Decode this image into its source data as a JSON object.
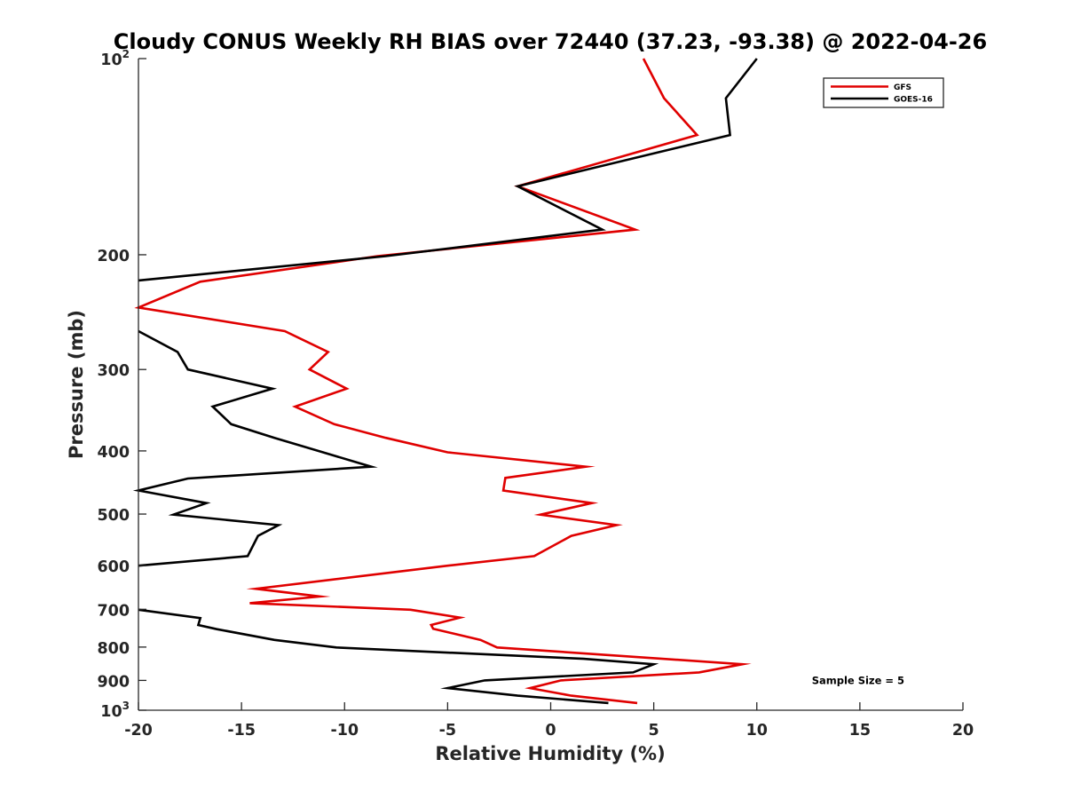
{
  "chart_data": {
    "type": "line",
    "title": "Cloudy CONUS Weekly RH BIAS over 72440 (37.23, -93.38) @ 2022-04-26",
    "xlabel": "Relative Humidity (%)",
    "ylabel": "Pressure (mb)",
    "xlim": [
      -20,
      20
    ],
    "ylim": [
      100,
      1000
    ],
    "y_scale": "log",
    "y_reversed": true,
    "grid": false,
    "legend_position": "top-right",
    "x_ticks": [
      "-20",
      "-15",
      "-10",
      "-5",
      "0",
      "5",
      "10",
      "15",
      "20"
    ],
    "x_tick_values": [
      -20,
      -15,
      -10,
      -5,
      0,
      5,
      10,
      15,
      20
    ],
    "y_ticks": [
      {
        "value": 100,
        "label": "10",
        "sup": "2"
      },
      {
        "value": 200,
        "label": "200",
        "sup": ""
      },
      {
        "value": 300,
        "label": "300",
        "sup": ""
      },
      {
        "value": 400,
        "label": "400",
        "sup": ""
      },
      {
        "value": 500,
        "label": "500",
        "sup": ""
      },
      {
        "value": 600,
        "label": "600",
        "sup": ""
      },
      {
        "value": 700,
        "label": "700",
        "sup": ""
      },
      {
        "value": 800,
        "label": "800",
        "sup": ""
      },
      {
        "value": 900,
        "label": "900",
        "sup": ""
      },
      {
        "value": 1000,
        "label": "10",
        "sup": "3"
      }
    ],
    "series": [
      {
        "name": "GFS",
        "color": "#e00000",
        "points": [
          {
            "x": 4.5,
            "y": 100
          },
          {
            "x": 5.5,
            "y": 115
          },
          {
            "x": 7.1,
            "y": 131
          },
          {
            "x": -1.6,
            "y": 157
          },
          {
            "x": 4.1,
            "y": 183
          },
          {
            "x": -8.4,
            "y": 201
          },
          {
            "x": -17.0,
            "y": 220
          },
          {
            "x": -20.0,
            "y": 241
          },
          {
            "x": -12.9,
            "y": 262
          },
          {
            "x": -10.8,
            "y": 282
          },
          {
            "x": -11.7,
            "y": 300
          },
          {
            "x": -9.9,
            "y": 321
          },
          {
            "x": -12.4,
            "y": 342
          },
          {
            "x": -10.5,
            "y": 364
          },
          {
            "x": -8.0,
            "y": 382
          },
          {
            "x": -5.0,
            "y": 402
          },
          {
            "x": 1.7,
            "y": 423
          },
          {
            "x": -2.2,
            "y": 440
          },
          {
            "x": -2.3,
            "y": 460
          },
          {
            "x": 2.0,
            "y": 481
          },
          {
            "x": -0.5,
            "y": 501
          },
          {
            "x": 3.2,
            "y": 520
          },
          {
            "x": 1.0,
            "y": 540
          },
          {
            "x": -0.8,
            "y": 580
          },
          {
            "x": -5.0,
            "y": 600
          },
          {
            "x": -14.3,
            "y": 651
          },
          {
            "x": -11.2,
            "y": 669
          },
          {
            "x": -14.6,
            "y": 685
          },
          {
            "x": -6.8,
            "y": 701
          },
          {
            "x": -4.4,
            "y": 721
          },
          {
            "x": -5.8,
            "y": 740
          },
          {
            "x": -5.7,
            "y": 750
          },
          {
            "x": -3.4,
            "y": 780
          },
          {
            "x": -2.6,
            "y": 801
          },
          {
            "x": 9.3,
            "y": 850
          },
          {
            "x": 7.2,
            "y": 875
          },
          {
            "x": 0.5,
            "y": 900
          },
          {
            "x": -1.0,
            "y": 925
          },
          {
            "x": 1.0,
            "y": 950
          },
          {
            "x": 4.2,
            "y": 975
          }
        ]
      },
      {
        "name": "GOES-16",
        "color": "#000000",
        "points": [
          {
            "x": 10.0,
            "y": 100
          },
          {
            "x": 8.5,
            "y": 115
          },
          {
            "x": 8.7,
            "y": 131
          },
          {
            "x": -1.6,
            "y": 157
          },
          {
            "x": 2.5,
            "y": 183
          },
          {
            "x": -8.0,
            "y": 201
          },
          {
            "x": -20.0,
            "y": 219
          },
          {
            "x": null,
            "y": 241
          },
          {
            "x": -20.0,
            "y": 262
          },
          {
            "x": -18.1,
            "y": 282
          },
          {
            "x": -17.6,
            "y": 300
          },
          {
            "x": -13.5,
            "y": 321
          },
          {
            "x": -16.4,
            "y": 342
          },
          {
            "x": -15.5,
            "y": 364
          },
          {
            "x": -13.4,
            "y": 382
          },
          {
            "x": -8.7,
            "y": 423
          },
          {
            "x": -17.6,
            "y": 441
          },
          {
            "x": -20.0,
            "y": 460
          },
          {
            "x": -16.7,
            "y": 481
          },
          {
            "x": -18.3,
            "y": 501
          },
          {
            "x": -13.2,
            "y": 520
          },
          {
            "x": -14.2,
            "y": 540
          },
          {
            "x": -14.7,
            "y": 580
          },
          {
            "x": -20.0,
            "y": 600
          },
          {
            "x": null,
            "y": 651
          },
          {
            "x": -20.0,
            "y": 701
          },
          {
            "x": -17.0,
            "y": 722
          },
          {
            "x": -17.1,
            "y": 740
          },
          {
            "x": -16.2,
            "y": 751
          },
          {
            "x": -13.4,
            "y": 780
          },
          {
            "x": -10.4,
            "y": 801
          },
          {
            "x": 1.6,
            "y": 834
          },
          {
            "x": 5.0,
            "y": 850
          },
          {
            "x": 4.0,
            "y": 875
          },
          {
            "x": -3.2,
            "y": 900
          },
          {
            "x": -5.0,
            "y": 925
          },
          {
            "x": -1.6,
            "y": 950
          },
          {
            "x": 2.8,
            "y": 975
          }
        ]
      }
    ],
    "annotations": [
      {
        "text": "Sample Size = 5",
        "x": 15.0,
        "y": 900
      }
    ]
  }
}
